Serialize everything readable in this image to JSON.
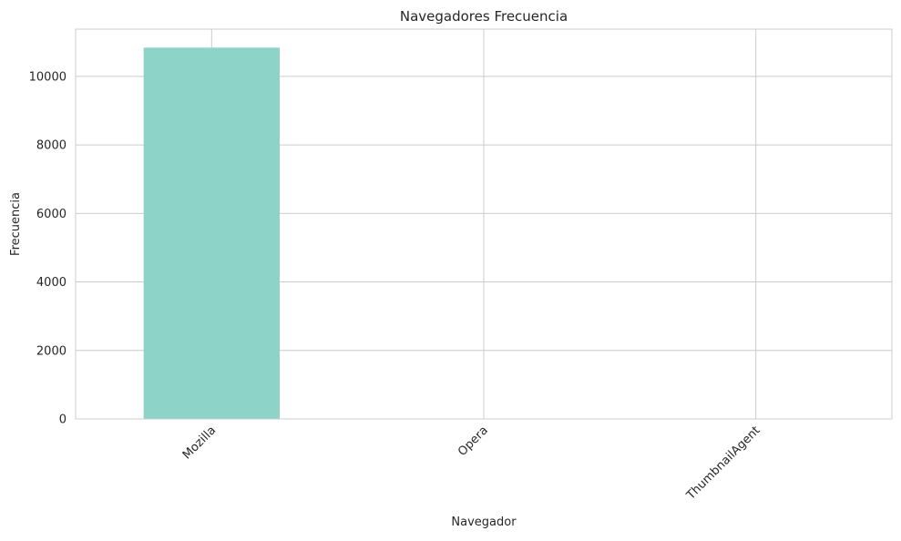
{
  "chart_data": {
    "type": "bar",
    "title": "Navegadores Frecuencia",
    "xlabel": "Navegador",
    "ylabel": "Frecuencia",
    "categories": [
      "Mozilla",
      "Opera",
      "ThumbnailAgent"
    ],
    "values": [
      10840,
      1,
      1
    ],
    "ylim": [
      0,
      11380
    ],
    "yticks": [
      0,
      2000,
      4000,
      6000,
      8000,
      10000
    ],
    "ytick_labels": [
      "0",
      "2000",
      "4000",
      "6000",
      "8000",
      "10000"
    ],
    "xtick_rotation_deg": 45,
    "grid": true,
    "legend": "none",
    "colors": {
      "bar": "#8dd3c7",
      "grid": "#cccccc",
      "spine": "#cccccc",
      "text": "#262626",
      "background": "#ffffff"
    }
  }
}
